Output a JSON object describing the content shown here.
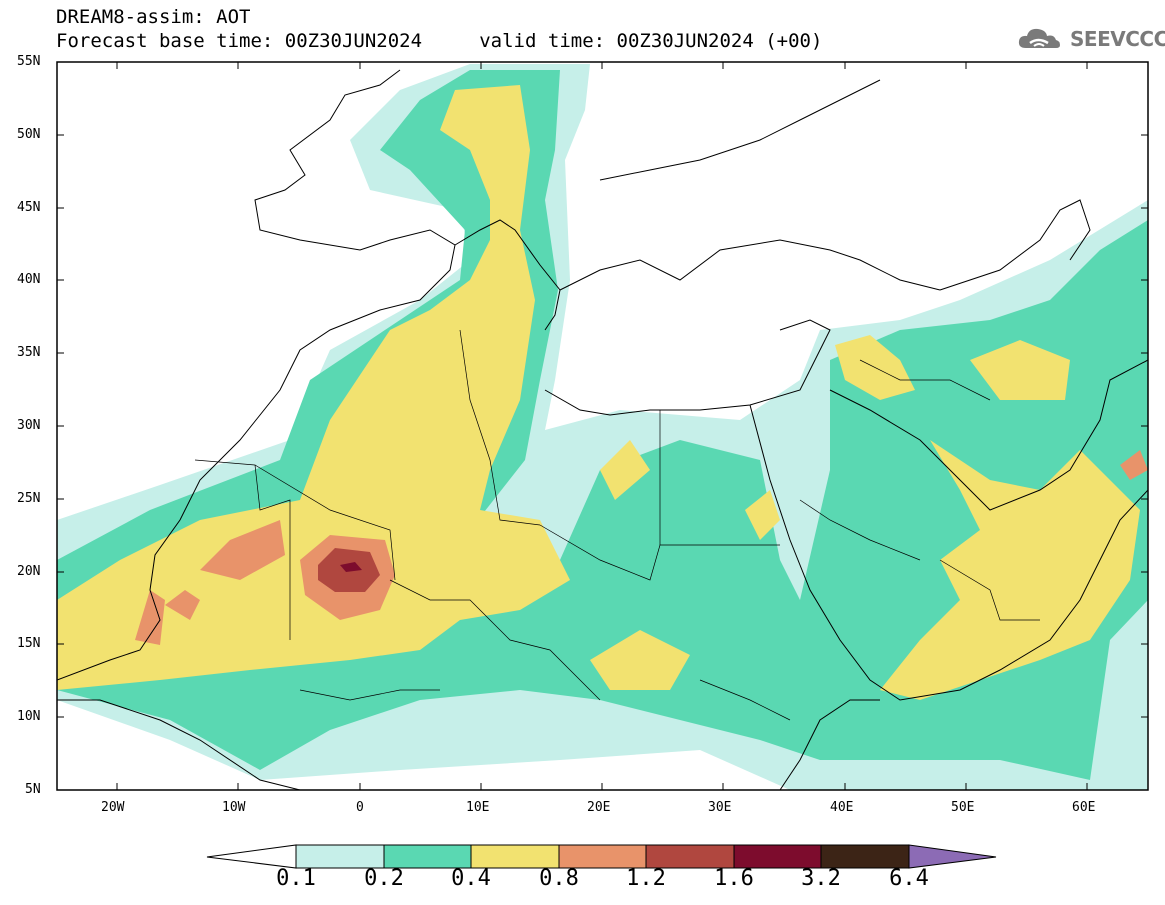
{
  "header": {
    "line1": "DREAM8-assim: AOT",
    "line2": "Forecast base time: 00Z30JUN2024     valid time: 00Z30JUN2024 (+00)"
  },
  "logo": {
    "text": "SEEVCCC",
    "icon": "cloud-icon"
  },
  "map": {
    "lon_range": [
      -25,
      65
    ],
    "lat_range": [
      5,
      55
    ],
    "lat_labels": [
      "55N",
      "50N",
      "45N",
      "40N",
      "35N",
      "30N",
      "25N",
      "20N",
      "15N",
      "10N",
      "5N"
    ],
    "lon_labels": [
      "20W",
      "10W",
      "0",
      "10E",
      "20E",
      "30E",
      "40E",
      "50E",
      "60E"
    ]
  },
  "colorbar": {
    "labels": [
      "0.1",
      "0.2",
      "0.4",
      "0.8",
      "1.2",
      "1.6",
      "3.2",
      "6.4"
    ],
    "colors": [
      "#c6efe9",
      "#5ad8b2",
      "#f2e270",
      "#e8936a",
      "#b0473f",
      "#7d0c2d",
      "#3c2416",
      "#8c6bb5"
    ]
  }
}
